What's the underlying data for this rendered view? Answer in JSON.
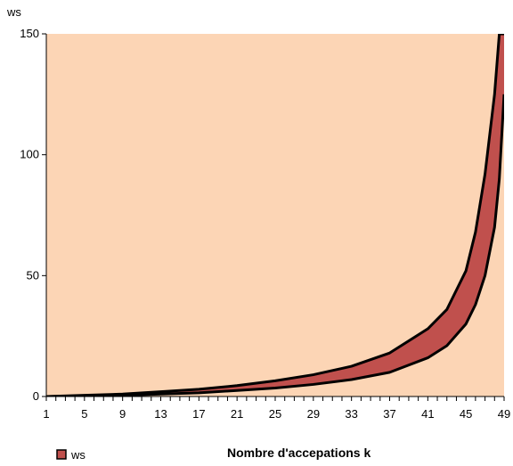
{
  "chart_data": {
    "type": "area",
    "ylabel": "ws",
    "xlabel": "Nombre d'accepations k",
    "xlim": [
      1,
      49
    ],
    "ylim": [
      0,
      150
    ],
    "y_ticks": [
      0,
      50,
      100,
      150
    ],
    "x_ticks": [
      1,
      5,
      9,
      13,
      17,
      21,
      25,
      29,
      33,
      37,
      41,
      45,
      49
    ],
    "legend": {
      "label": "ws",
      "placement": "bottom-left"
    },
    "grid": false,
    "x": [
      1,
      5,
      9,
      13,
      17,
      21,
      25,
      29,
      33,
      37,
      41,
      43,
      45,
      46,
      47,
      48,
      48.5,
      49
    ],
    "upper": [
      0,
      0.5,
      1,
      2,
      3,
      4.5,
      6.5,
      9,
      12.5,
      18,
      28,
      36,
      52,
      68,
      92,
      125,
      150,
      150
    ],
    "lower": [
      0,
      0.2,
      0.5,
      1,
      1.5,
      2.5,
      3.5,
      5,
      7,
      10,
      16,
      21,
      30,
      38,
      50,
      70,
      90,
      125
    ],
    "colors": {
      "background": "#FCD5B5",
      "fill": "#C0504D",
      "line": "#000000"
    }
  }
}
